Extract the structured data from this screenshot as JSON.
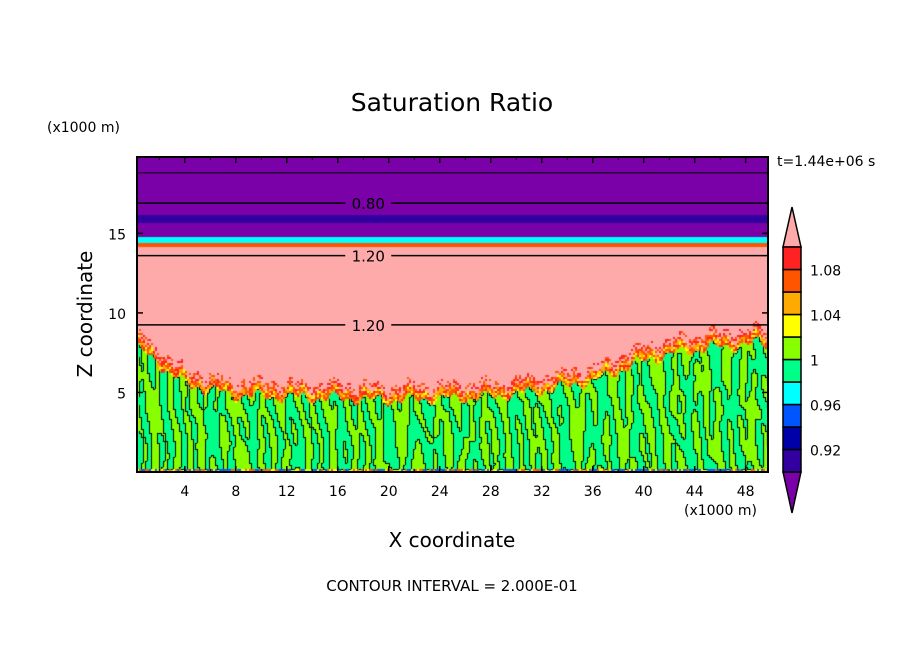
{
  "chart_data": {
    "type": "heatmap",
    "title": "Saturation Ratio",
    "xlabel": "X coordinate",
    "ylabel": "Z coordinate",
    "x_units": "(x1000 m)",
    "z_units": "(x1000 m)",
    "time_label": "t=1.44e+06 s",
    "footer": "CONTOUR INTERVAL = 2.000E-01",
    "xlim": [
      0.25,
      49.75
    ],
    "ylim": [
      0,
      19.8
    ],
    "xticks": [
      4,
      8,
      12,
      16,
      20,
      24,
      28,
      32,
      36,
      40,
      44,
      48
    ],
    "xtick_labels": [
      "4",
      "8",
      "12",
      "16",
      "20",
      "24",
      "28",
      "32",
      "36",
      "40",
      "44",
      "48"
    ],
    "yticks": [
      5,
      10,
      15
    ],
    "ytick_labels": [
      "5",
      "10",
      "15"
    ],
    "colorbar": {
      "levels": [
        0.9,
        0.92,
        0.94,
        0.96,
        0.98,
        1.0,
        1.02,
        1.04,
        1.06,
        1.08,
        1.1
      ],
      "colors": [
        "#7a00a8",
        "#3300a0",
        "#0000a8",
        "#0055ff",
        "#00ffff",
        "#00ff88",
        "#88ff00",
        "#ffff00",
        "#ffaa00",
        "#ff5500",
        "#ff2222",
        "#ffaaaa"
      ],
      "labels": [
        {
          "value": 1.08,
          "text": "1.08"
        },
        {
          "value": 1.04,
          "text": "1.04"
        },
        {
          "value": 1.0,
          "text": "1"
        },
        {
          "value": 0.96,
          "text": "0.96"
        },
        {
          "value": 0.92,
          "text": "0.92"
        }
      ],
      "extend": "both"
    },
    "contour_lines": [
      {
        "z": 18.8,
        "label": ""
      },
      {
        "z": 16.9,
        "label": "0.80",
        "label_x": 18
      },
      {
        "z": 13.6,
        "label": "1.20",
        "label_x": 18
      },
      {
        "z": 9.25,
        "label": "1.20",
        "label_x": 18
      }
    ],
    "layers": [
      {
        "z_min": 16.2,
        "z_max": 19.8,
        "value": 0.8
      },
      {
        "z_min": 15.7,
        "z_max": 16.2,
        "value": 0.91
      },
      {
        "z_min": 14.8,
        "z_max": 15.7,
        "value": 0.8
      },
      {
        "z_min": 14.4,
        "z_max": 14.8,
        "value": 0.97
      },
      {
        "z_min": 14.2,
        "z_max": 14.4,
        "value": 1.07
      },
      {
        "z_min": 0.0,
        "z_max": 14.2,
        "value": 1.2
      }
    ],
    "boundary_layer_top": {
      "x": [
        0,
        4,
        8,
        12,
        16,
        20,
        24,
        28,
        32,
        36,
        40,
        44,
        48,
        50
      ],
      "z": [
        8.5,
        6.0,
        5.3,
        5.2,
        5.1,
        5.0,
        5.1,
        5.2,
        5.6,
        6.2,
        7.5,
        8.2,
        8.5,
        8.6
      ]
    },
    "boundary_layer_values": [
      0.99,
      1.01
    ]
  }
}
